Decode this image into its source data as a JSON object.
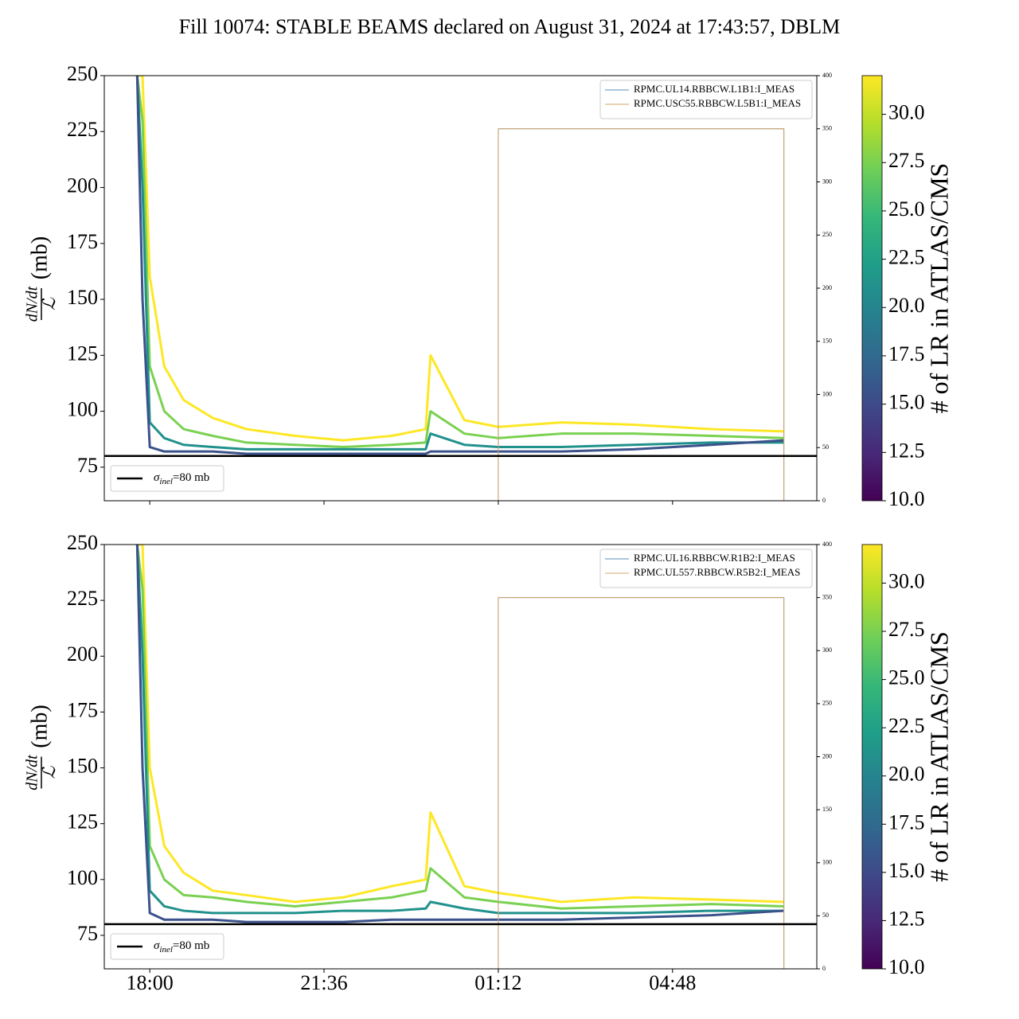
{
  "chart_data": [
    {
      "type": "line",
      "title": "Fill 10074: STABLE BEAMS declared on August 31, 2024 at 17:43:57, DBLM",
      "ylabel_num": "dN/dt",
      "ylabel_den": "ℒ",
      "ylabel_unit": "(mb)",
      "xlim": [
        17.06,
        31.78
      ],
      "ylim": [
        60,
        250
      ],
      "yticks": [
        75,
        100,
        125,
        150,
        175,
        200,
        225,
        250
      ],
      "y2lim": [
        0,
        400
      ],
      "y2ticks": [
        0,
        50,
        100,
        150,
        200,
        250,
        300,
        350,
        400
      ],
      "x": [
        17.74,
        17.85,
        18.0,
        18.3,
        18.7,
        19.3,
        20.0,
        21.0,
        22.0,
        23.0,
        23.7,
        23.8,
        24.5,
        25.2,
        26.5,
        28.0,
        29.6,
        31.1
      ],
      "series": [
        {
          "color": "#fde725",
          "values": [
            250,
            250,
            160,
            120,
            105,
            97,
            92,
            89,
            87,
            89,
            92,
            125,
            96,
            93,
            95,
            94,
            92,
            91
          ]
        },
        {
          "color": "#7ad151",
          "values": [
            250,
            230,
            120,
            100,
            92,
            89,
            86,
            85,
            84,
            85,
            86,
            100,
            90,
            88,
            90,
            90,
            89,
            88
          ]
        },
        {
          "color": "#21918c",
          "values": [
            250,
            200,
            95,
            88,
            85,
            84,
            83,
            83,
            83,
            83,
            83,
            90,
            85,
            84,
            84,
            85,
            86,
            86
          ]
        },
        {
          "color": "#3b528b",
          "values": [
            250,
            150,
            84,
            82,
            82,
            82,
            81,
            81,
            81,
            81,
            81,
            82,
            82,
            82,
            82,
            83,
            85,
            87
          ]
        },
        {
          "name": "RPMC.UL14.RBBCW.L1B1:I_MEAS",
          "color": "#5b8db8",
          "axis": "y2",
          "x": [
            17.74,
            25.2,
            25.2,
            31.1,
            31.1
          ],
          "values": [
            0,
            0,
            350,
            350,
            0
          ]
        },
        {
          "name": "RPMC.USC55.RBBCW.L5B1:I_MEAS",
          "color": "#d4a46a",
          "axis": "y2",
          "x": [
            17.74,
            25.2,
            25.2,
            31.1,
            31.1
          ],
          "values": [
            0,
            0,
            350,
            350,
            0
          ]
        }
      ],
      "hline": {
        "value": 80,
        "label": "σ",
        "label_sub": "inel",
        "label_rest": "=80 mb",
        "color": "#000000"
      },
      "colorbar": {
        "label": "# of LR in ATLAS/CMS",
        "lim": [
          10,
          32
        ],
        "colors": [
          "#440154",
          "#482878",
          "#3e4989",
          "#31688e",
          "#26828e",
          "#1f9e89",
          "#35b779",
          "#6ece58",
          "#b5de2b",
          "#fde725"
        ],
        "ticks": [
          {
            "value": 10,
            "label": "10.0"
          },
          {
            "value": 12.5,
            "label": "12.5"
          },
          {
            "value": 15,
            "label": "15.0"
          },
          {
            "value": 17.5,
            "label": "17.5"
          },
          {
            "value": 20,
            "label": "20.0"
          },
          {
            "value": 22.5,
            "label": "22.5"
          },
          {
            "value": 25,
            "label": "25.0"
          },
          {
            "value": 27.5,
            "label": "27.5"
          },
          {
            "value": 30,
            "label": "30.0"
          }
        ]
      }
    },
    {
      "type": "line",
      "ylabel_num": "dN/dt",
      "ylabel_den": "ℒ",
      "ylabel_unit": "(mb)",
      "xlim": [
        17.06,
        31.78
      ],
      "ylim": [
        60,
        250
      ],
      "yticks": [
        75,
        100,
        125,
        150,
        175,
        200,
        225,
        250
      ],
      "xticks": [
        {
          "value": 18,
          "label": "18:00"
        },
        {
          "value": 21.6,
          "label": "21:36"
        },
        {
          "value": 25.2,
          "label": "01:12"
        },
        {
          "value": 28.8,
          "label": "04:48"
        }
      ],
      "y2lim": [
        0,
        400
      ],
      "y2ticks": [
        0,
        50,
        100,
        150,
        200,
        250,
        300,
        350,
        400
      ],
      "x": [
        17.74,
        17.85,
        18.0,
        18.3,
        18.7,
        19.3,
        20.0,
        21.0,
        22.0,
        23.0,
        23.7,
        23.8,
        24.5,
        25.2,
        26.5,
        28.0,
        29.6,
        31.1
      ],
      "series": [
        {
          "color": "#fde725",
          "values": [
            250,
            250,
            150,
            115,
            103,
            95,
            93,
            90,
            92,
            97,
            100,
            130,
            97,
            94,
            90,
            92,
            91,
            90
          ]
        },
        {
          "color": "#7ad151",
          "values": [
            250,
            230,
            115,
            100,
            93,
            92,
            90,
            88,
            90,
            92,
            95,
            105,
            92,
            90,
            87,
            88,
            89,
            88
          ]
        },
        {
          "color": "#21918c",
          "values": [
            250,
            200,
            95,
            88,
            86,
            85,
            85,
            85,
            86,
            86,
            87,
            90,
            87,
            85,
            85,
            85,
            86,
            86
          ]
        },
        {
          "color": "#3b528b",
          "values": [
            250,
            150,
            85,
            82,
            82,
            82,
            81,
            81,
            81,
            82,
            82,
            82,
            82,
            82,
            82,
            83,
            84,
            86
          ]
        },
        {
          "name": "RPMC.UL16.RBBCW.R1B2:I_MEAS",
          "color": "#5b8db8",
          "axis": "y2",
          "x": [
            17.74,
            25.2,
            25.2,
            31.1,
            31.1
          ],
          "values": [
            0,
            0,
            350,
            350,
            0
          ]
        },
        {
          "name": "RPMC.UL557.RBBCW.R5B2:I_MEAS",
          "color": "#d4a46a",
          "axis": "y2",
          "x": [
            17.74,
            25.2,
            25.2,
            31.1,
            31.1
          ],
          "values": [
            0,
            0,
            350,
            350,
            0
          ]
        }
      ],
      "hline": {
        "value": 80,
        "label": "σ",
        "label_sub": "inel",
        "label_rest": "=80 mb",
        "color": "#000000"
      },
      "colorbar": {
        "label": "# of LR in ATLAS/CMS",
        "lim": [
          10,
          32
        ],
        "colors": [
          "#440154",
          "#482878",
          "#3e4989",
          "#31688e",
          "#26828e",
          "#1f9e89",
          "#35b779",
          "#6ece58",
          "#b5de2b",
          "#fde725"
        ],
        "ticks": [
          {
            "value": 10,
            "label": "10.0"
          },
          {
            "value": 12.5,
            "label": "12.5"
          },
          {
            "value": 15,
            "label": "15.0"
          },
          {
            "value": 17.5,
            "label": "17.5"
          },
          {
            "value": 20,
            "label": "20.0"
          },
          {
            "value": 22.5,
            "label": "22.5"
          },
          {
            "value": 25,
            "label": "25.0"
          },
          {
            "value": 27.5,
            "label": "27.5"
          },
          {
            "value": 30,
            "label": "30.0"
          }
        ]
      }
    }
  ]
}
